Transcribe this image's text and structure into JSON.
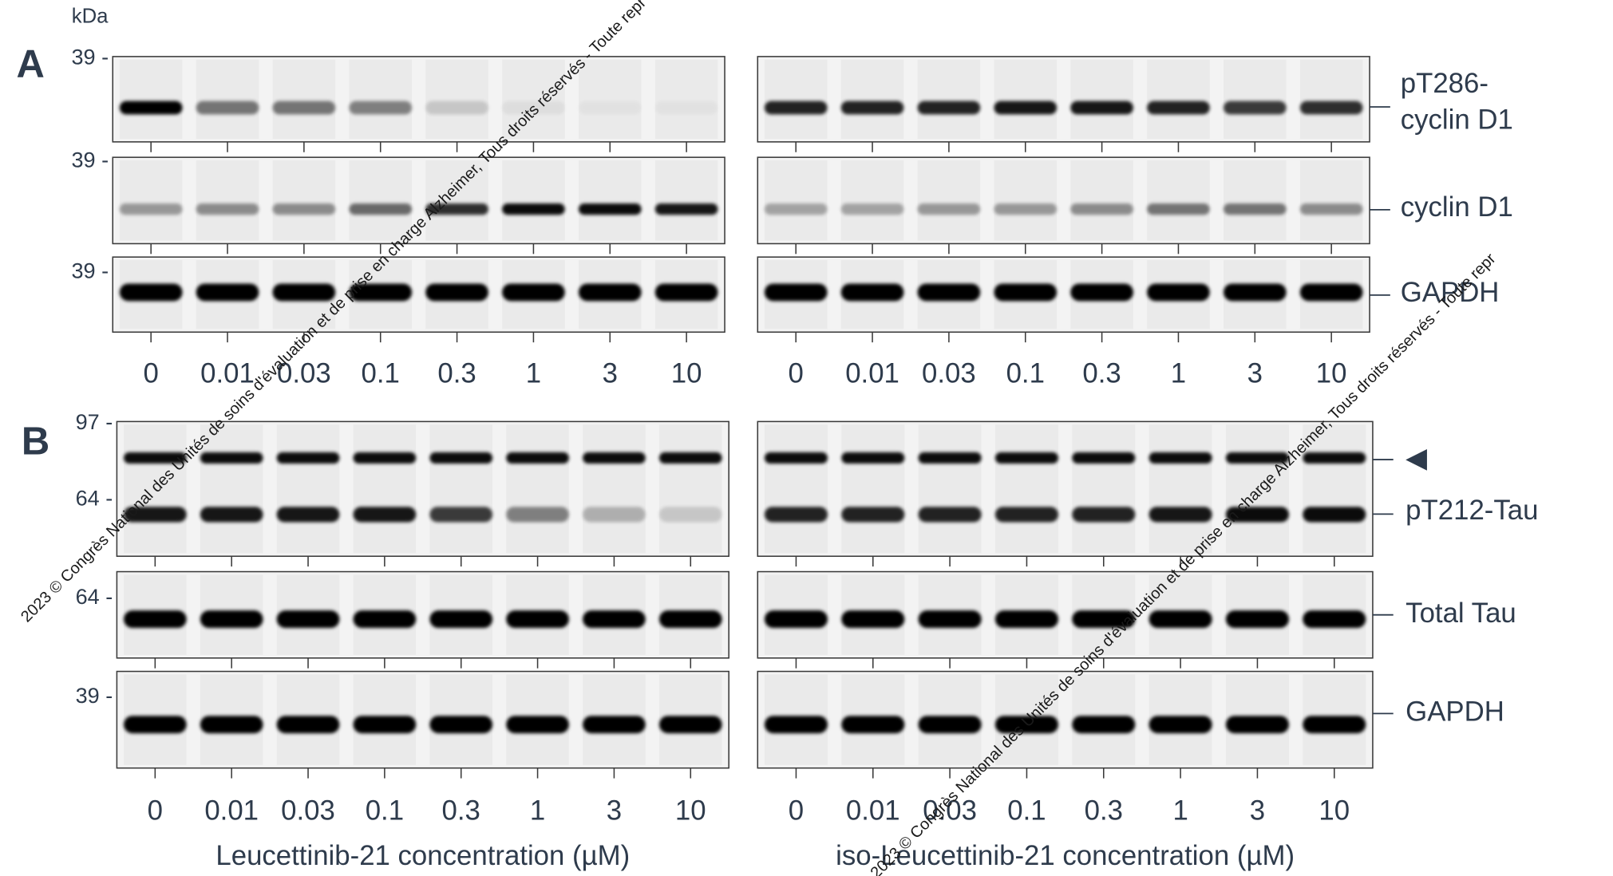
{
  "kda_unit": "kDa",
  "panels": [
    {
      "label": "A",
      "blots": [
        {
          "markers": [
            "39 -"
          ],
          "labels": [
            "pT286-",
            "cyclin D1"
          ]
        },
        {
          "markers": [
            "39 -"
          ],
          "labels": [
            "cyclin D1"
          ]
        },
        {
          "markers": [
            "39 -"
          ],
          "labels": [
            "GAPDH"
          ]
        }
      ],
      "left_lanes": [
        "0",
        "0.01",
        "0.03",
        "0.1",
        "0.3",
        "1",
        "3",
        "10"
      ],
      "right_lanes": [
        "0",
        "0.01",
        "0.03",
        "0.1",
        "0.3",
        "1",
        "3",
        "10"
      ]
    },
    {
      "label": "B",
      "blots": [
        {
          "markers": [
            "97 -",
            "64 -"
          ],
          "labels": [
            "◀",
            "pT212-Tau"
          ]
        },
        {
          "markers": [
            "64 -"
          ],
          "labels": [
            "Total Tau"
          ]
        },
        {
          "markers": [
            "39 -"
          ],
          "labels": [
            "GAPDH"
          ]
        }
      ],
      "left_lanes": [
        "0",
        "0.01",
        "0.03",
        "0.1",
        "0.3",
        "1",
        "3",
        "10"
      ],
      "right_lanes": [
        "0",
        "0.01",
        "0.03",
        "0.1",
        "0.3",
        "1",
        "3",
        "10"
      ],
      "left_axis_title": "Leucettinib-21 concentration (µM)",
      "right_axis_title": "iso-Leucettinib-21 concentration (µM)"
    }
  ],
  "watermarks": [
    "2023 © Congrès National des Unités de soins d'évaluation et de prise en charge Alzheimer, Tous droits réservés - Toute repr",
    "2023 © Congrès National des Unités de soins d'évaluation et de prise en charge Alzheimer, Tous droits réservés - Toute repr"
  ]
}
